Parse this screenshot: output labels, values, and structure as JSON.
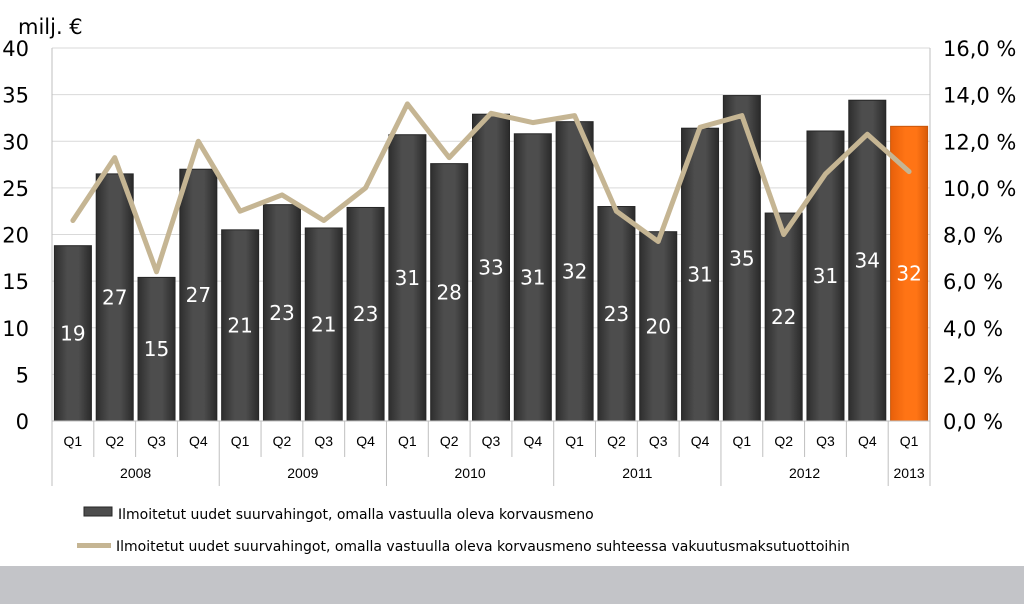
{
  "colors": {
    "bar": "#4d4d4d",
    "bar_highlight": "#ff7415",
    "line": "#c5b593",
    "grid": "#d9d9d9",
    "footer_band": "#c3c4c8"
  },
  "chart_data": {
    "type": "bar",
    "unit_label": "milj. €",
    "categories": [
      "Q1",
      "Q2",
      "Q3",
      "Q4",
      "Q1",
      "Q2",
      "Q3",
      "Q4",
      "Q1",
      "Q2",
      "Q3",
      "Q4",
      "Q1",
      "Q2",
      "Q3",
      "Q4",
      "Q1",
      "Q2",
      "Q3",
      "Q4",
      "Q1"
    ],
    "groups": [
      {
        "label": "2008",
        "count": 4
      },
      {
        "label": "2009",
        "count": 4
      },
      {
        "label": "2010",
        "count": 4
      },
      {
        "label": "2011",
        "count": 4
      },
      {
        "label": "2012",
        "count": 4
      },
      {
        "label": "2013",
        "count": 1
      }
    ],
    "highlight_index": 20,
    "ylim": [
      0,
      40
    ],
    "y_ticks": [
      "0",
      "5",
      "10",
      "15",
      "20",
      "25",
      "30",
      "35",
      "40"
    ],
    "y2lim": [
      0,
      16
    ],
    "y2_ticks": [
      "0,0 %",
      "2,0 %",
      "4,0 %",
      "6,0 %",
      "8,0 %",
      "10,0 %",
      "12,0 %",
      "14,0 %",
      "16,0 %"
    ],
    "grid": true,
    "legend_position": "bottom",
    "series": [
      {
        "name": "Ilmoitetut uudet suurvahingot, omalla vastuulla oleva korvausmeno",
        "kind": "bar",
        "axis": "left",
        "values": [
          18.8,
          26.5,
          15.4,
          27.0,
          20.5,
          23.2,
          20.7,
          22.9,
          30.7,
          27.6,
          32.9,
          30.8,
          32.1,
          23.0,
          20.3,
          31.4,
          34.9,
          22.3,
          31.1,
          34.4,
          31.6
        ],
        "data_labels": [
          "19",
          "27",
          "15",
          "27",
          "21",
          "23",
          "21",
          "23",
          "31",
          "28",
          "33",
          "31",
          "32",
          "23",
          "20",
          "31",
          "35",
          "22",
          "31",
          "34",
          "32"
        ]
      },
      {
        "name": "Ilmoitetut uudet suurvahingot, omalla vastuulla oleva korvausmeno suhteessa vakuutusmaksutuottoihin",
        "kind": "line",
        "axis": "right",
        "values": [
          8.6,
          11.3,
          6.4,
          12.0,
          9.0,
          9.7,
          8.6,
          10.0,
          13.6,
          11.3,
          13.2,
          12.8,
          13.1,
          9.0,
          7.7,
          12.6,
          13.1,
          8.0,
          10.6,
          12.3,
          10.7
        ]
      }
    ]
  }
}
